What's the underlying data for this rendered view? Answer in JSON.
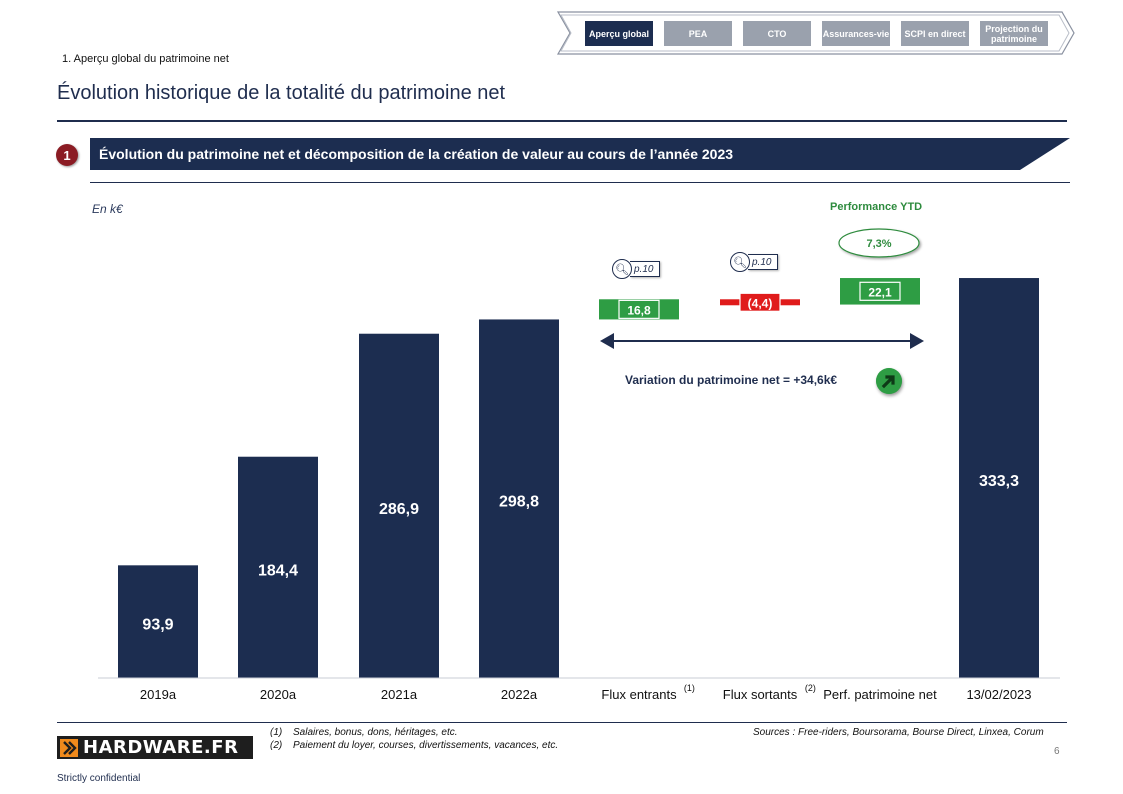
{
  "nav": {
    "tabs": [
      {
        "label": "Aperçu global",
        "active": true
      },
      {
        "label": "PEA",
        "active": false
      },
      {
        "label": "CTO",
        "active": false
      },
      {
        "label": "Assurances-vie",
        "active": false
      },
      {
        "label": "SCPI en direct",
        "active": false
      },
      {
        "label": "Projection du patrimoine",
        "active": false
      }
    ]
  },
  "header": {
    "breadcrumb": "1. Aperçu global du patrimoine net",
    "title": "Évolution historique de la totalité du patrimoine net"
  },
  "section": {
    "number": "1",
    "title": "Évolution du patrimoine net et décomposition de la création de valeur au cours de l’année 2023"
  },
  "chart_data": {
    "type": "bar",
    "subtype": "waterfall",
    "unit_label": "En k€",
    "categories": [
      "2019a",
      "2020a",
      "2021a",
      "2022a",
      "Flux entrants",
      "Flux sortants",
      "Perf. patrimoine net",
      "13/02/2023"
    ],
    "category_notes": [
      "",
      "",
      "",
      "",
      "(1)",
      "(2)",
      "",
      ""
    ],
    "values": [
      93.9,
      184.4,
      286.9,
      298.8,
      16.8,
      -4.4,
      22.1,
      333.3
    ],
    "value_labels": [
      "93,9",
      "184,4",
      "286,9",
      "298,8",
      "16,8",
      "(4,4)",
      "22,1",
      "333,3"
    ],
    "bar_kinds": [
      "total",
      "total",
      "total",
      "total",
      "increase",
      "decrease",
      "increase",
      "total"
    ],
    "colors": {
      "total": "#1c2d50",
      "increase": "#2e9d44",
      "decrease": "#e01b1b"
    },
    "ylim": [
      0,
      350
    ],
    "page_refs": [
      {
        "category": "Flux entrants",
        "text": "p.10"
      },
      {
        "category": "Flux sortants",
        "text": "p.10"
      }
    ],
    "performance": {
      "title": "Performance YTD",
      "value": "7,3%"
    },
    "variation_label": "Variation du patrimoine net = +34,6k€",
    "xlabel": "",
    "ylabel": ""
  },
  "footer": {
    "logo_text": "HARDWARE.FR",
    "notes": [
      {
        "num": "(1)",
        "text": "Salaires, bonus, dons, héritages, etc."
      },
      {
        "num": "(2)",
        "text": "Paiement du loyer, courses, divertissements, vacances, etc."
      }
    ],
    "sources": "Sources : Free-riders, Boursorama, Bourse Direct, Linxea, Corum",
    "page_number": "6",
    "confidential": "Strictly confidential"
  }
}
